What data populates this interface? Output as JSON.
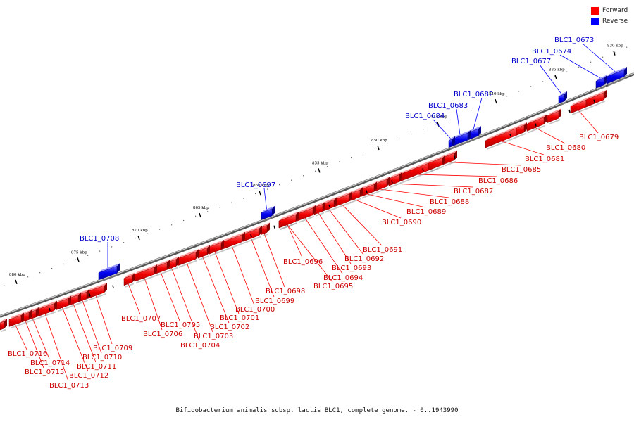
{
  "legend": {
    "forward": {
      "label": "Forward",
      "color": "#ff0000"
    },
    "reverse": {
      "label": "Reverse",
      "color": "#0000ff"
    }
  },
  "caption": "Bifidobacterium animalis subsp. lactis BLC1, complete genome. - 0..1943990",
  "ticks": [
    "830 kbp",
    "835 kbp",
    "840 kbp",
    "845 kbp",
    "850 kbp",
    "855 kbp",
    "860 kbp",
    "865 kbp",
    "870 kbp",
    "875 kbp",
    "880 kbp"
  ],
  "genes_forward": [
    "BLC1_0679",
    "BLC1_0680",
    "BLC1_0681",
    "BLC1_0685",
    "BLC1_0686",
    "BLC1_0687",
    "BLC1_0688",
    "BLC1_0689",
    "BLC1_0690",
    "BLC1_0691",
    "BLC1_0692",
    "BLC1_0693",
    "BLC1_0694",
    "BLC1_0695",
    "BLC1_0696",
    "BLC1_0698",
    "BLC1_0699",
    "BLC1_0700",
    "BLC1_0701",
    "BLC1_0702",
    "BLC1_0703",
    "BLC1_0704",
    "BLC1_0705",
    "BLC1_0706",
    "BLC1_0707",
    "BLC1_0709",
    "BLC1_0710",
    "BLC1_0711",
    "BLC1_0712",
    "BLC1_0713",
    "BLC1_0714",
    "BLC1_0715",
    "BLC1_0716"
  ],
  "genes_reverse": [
    "BLC1_0673",
    "BLC1_0674",
    "BLC1_0677",
    "BLC1_0682",
    "BLC1_0683",
    "BLC1_0684",
    "BLC1_0697",
    "BLC1_0708"
  ]
}
